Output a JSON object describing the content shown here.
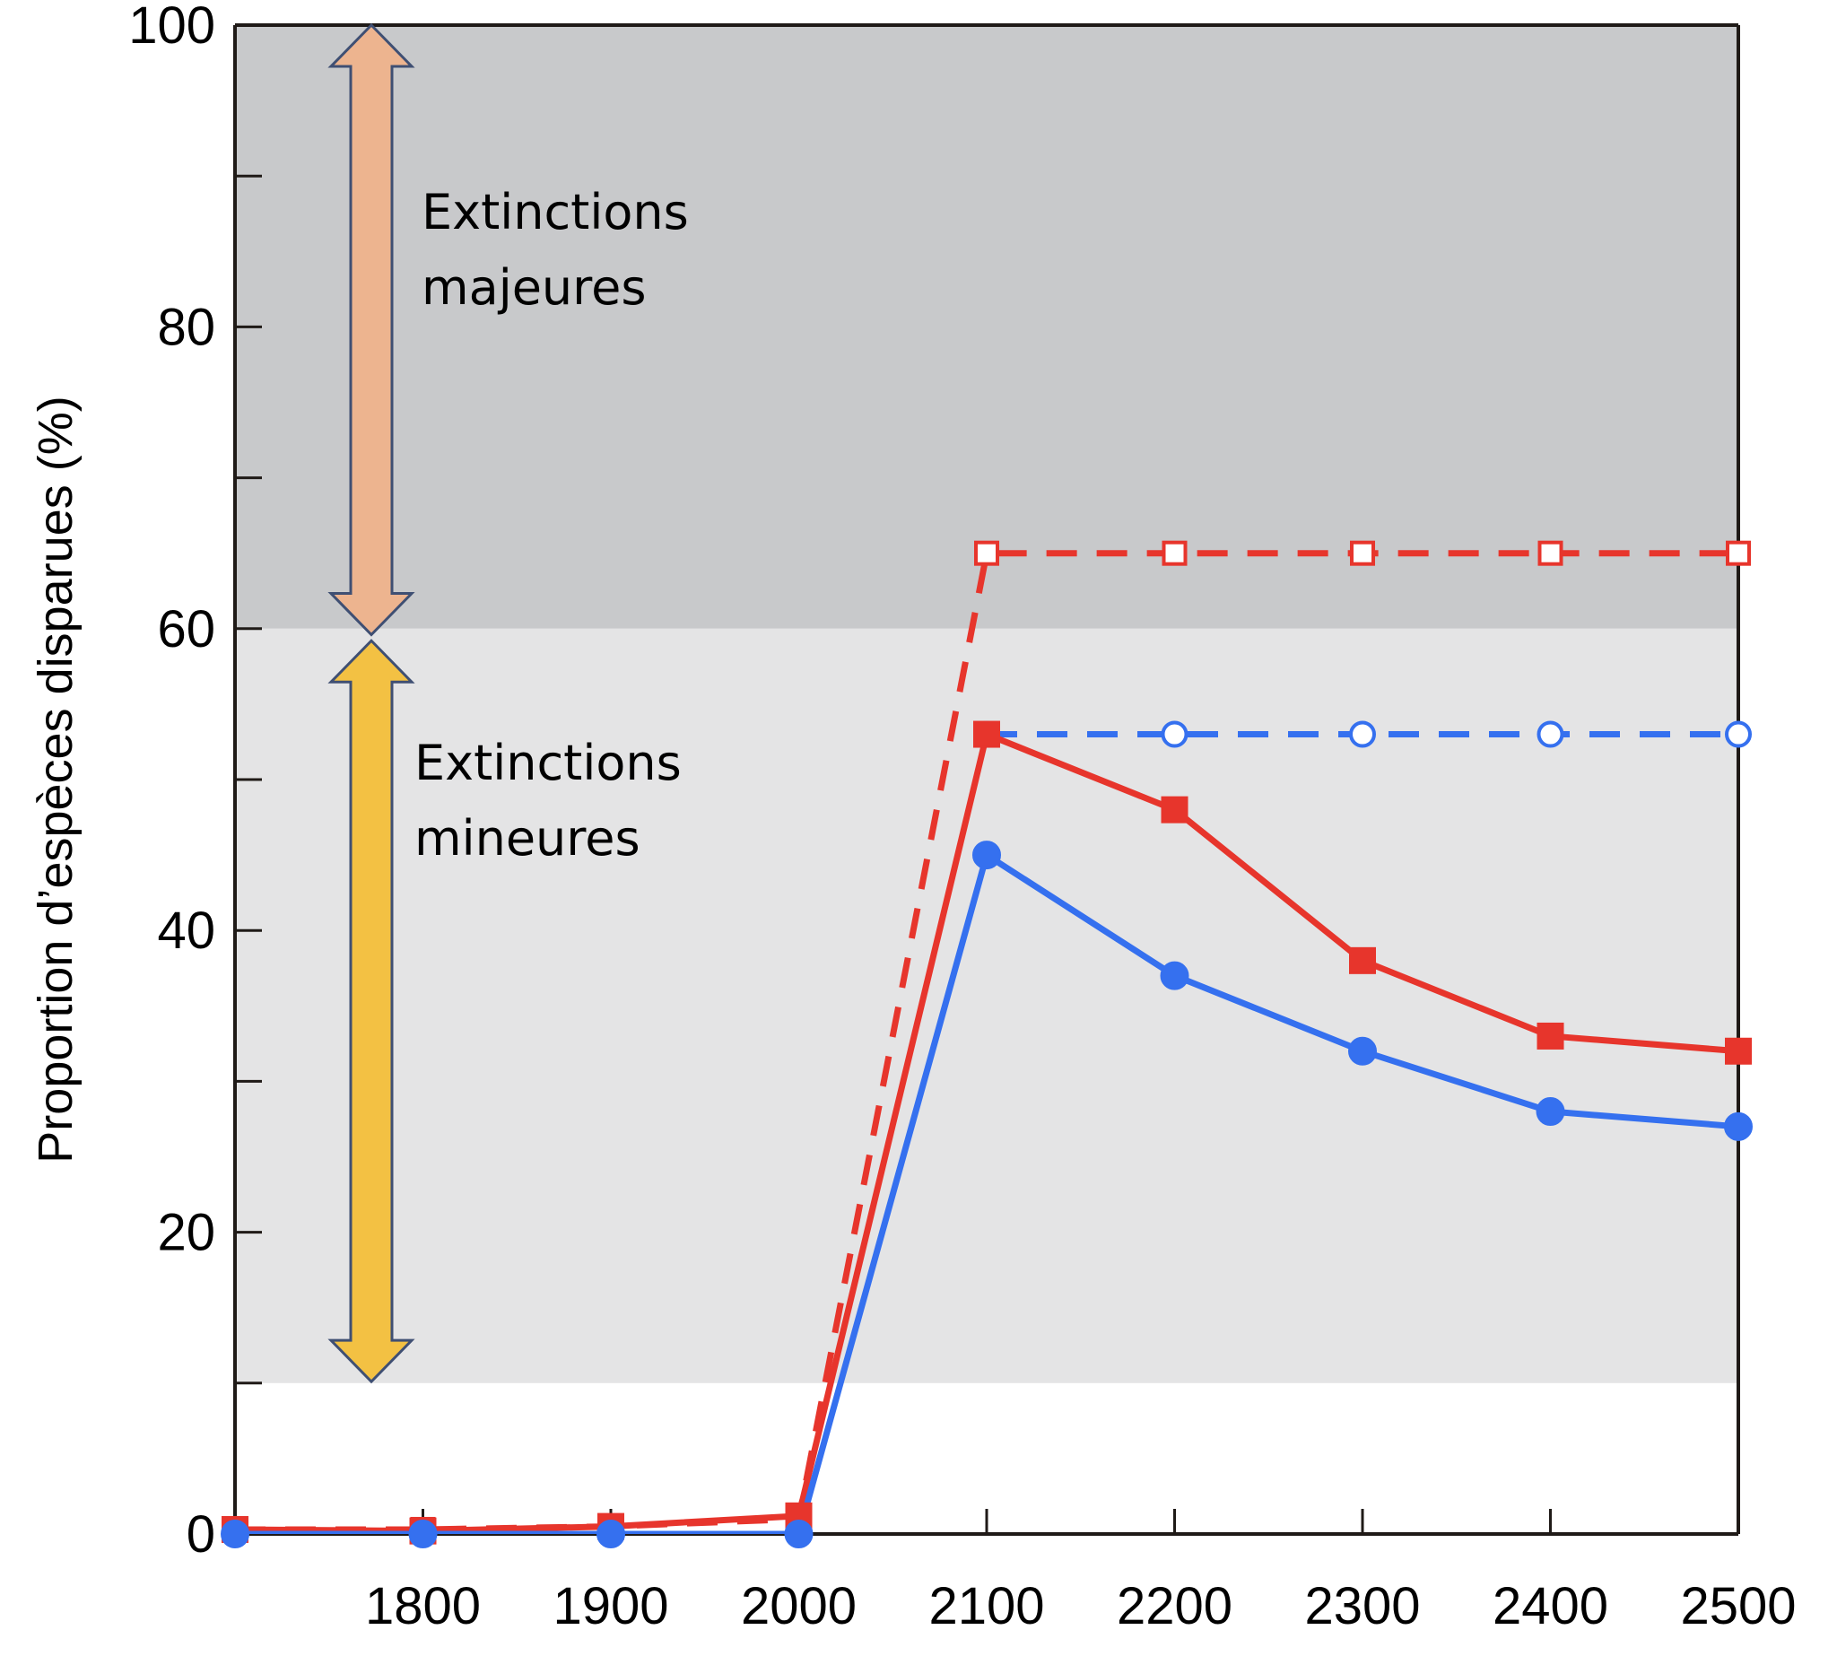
{
  "chart_data": {
    "type": "line",
    "title": "",
    "xlabel": "",
    "ylabel": "Proportion d’espèces disparues (%)",
    "xlim": [
      1700,
      2500
    ],
    "ylim": [
      0,
      100
    ],
    "x_ticks": [
      1800,
      1900,
      2000,
      2100,
      2200,
      2300,
      2400,
      2500
    ],
    "y_ticks": [
      0,
      20,
      40,
      60,
      80,
      100
    ],
    "y_minor_ticks": [
      10,
      30,
      50,
      70,
      90
    ],
    "grid": false,
    "zones": [
      {
        "name": "Extinctions majeures",
        "label_lines": [
          "Extinctions",
          "majeures"
        ],
        "range": [
          60,
          100
        ],
        "color": "#c8c9cb",
        "arrow_color": "#edb48f"
      },
      {
        "name": "Extinctions mineures",
        "label_lines": [
          "Extinctions",
          "mineures"
        ],
        "range": [
          10,
          60
        ],
        "color": "#e4e4e5",
        "arrow_color": "#f3c143"
      }
    ],
    "series": [
      {
        "color": "#e7352c",
        "dashed": true,
        "marker": "square-open",
        "points": [
          [
            1700,
            0.3
          ],
          [
            1800,
            0.3
          ],
          [
            1900,
            0.5
          ],
          [
            2000,
            1.0
          ],
          [
            2100,
            65
          ],
          [
            2200,
            65
          ],
          [
            2300,
            65
          ],
          [
            2400,
            65
          ],
          [
            2500,
            65
          ]
        ]
      },
      {
        "color": "#3570ef",
        "dashed": true,
        "marker": "circle-open",
        "points": [
          [
            2100,
            53
          ],
          [
            2200,
            53
          ],
          [
            2300,
            53
          ],
          [
            2400,
            53
          ],
          [
            2500,
            53
          ]
        ]
      },
      {
        "color": "#e7352c",
        "dashed": false,
        "marker": "square",
        "points": [
          [
            1700,
            0.3
          ],
          [
            1800,
            0.2
          ],
          [
            1900,
            0.5
          ],
          [
            2000,
            1.2
          ],
          [
            2100,
            53
          ],
          [
            2200,
            48
          ],
          [
            2300,
            38
          ],
          [
            2400,
            33
          ],
          [
            2500,
            32
          ]
        ]
      },
      {
        "color": "#3570ef",
        "dashed": false,
        "marker": "circle",
        "points": [
          [
            1700,
            0
          ],
          [
            1800,
            0
          ],
          [
            1900,
            0
          ],
          [
            2000,
            0
          ],
          [
            2100,
            45
          ],
          [
            2200,
            37
          ],
          [
            2300,
            32
          ],
          [
            2400,
            28
          ],
          [
            2500,
            27
          ]
        ]
      }
    ]
  }
}
